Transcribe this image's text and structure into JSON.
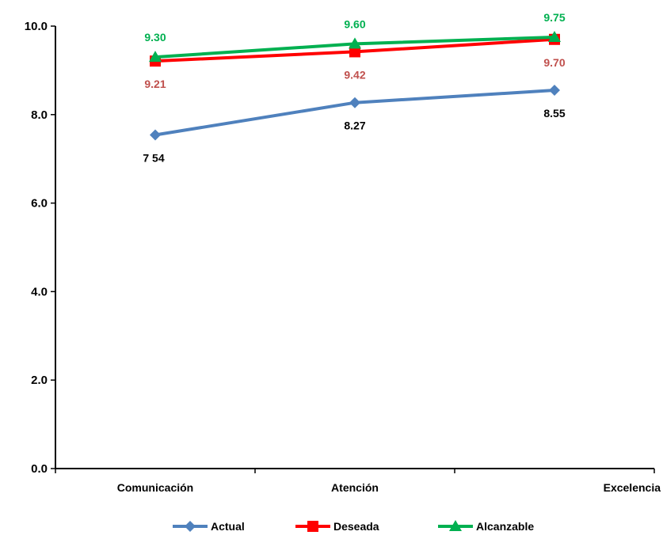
{
  "chart_data": {
    "type": "line",
    "categories": [
      "Comunicación",
      "Atención",
      "Excelencia"
    ],
    "ylim": [
      0,
      10
    ],
    "yticks": [
      "0.0",
      "2.0",
      "4.0",
      "6.0",
      "8.0",
      "10.0"
    ],
    "grid": false,
    "legend_position": "bottom",
    "series": [
      {
        "name": "Actual",
        "color": "#4F81BD",
        "marker": "diamond",
        "values": [
          7.54,
          8.27,
          8.55
        ],
        "labels": [
          "7 54",
          "8.27",
          "8.55"
        ],
        "label_color": "#000000",
        "label_position": "below"
      },
      {
        "name": "Deseada",
        "color": "#FF0000",
        "marker": "square",
        "values": [
          9.21,
          9.42,
          9.7
        ],
        "labels": [
          "9.21",
          "9.42",
          "9.70"
        ],
        "label_color": "#C0504D",
        "label_position": "below"
      },
      {
        "name": "Alcanzable",
        "color": "#00B050",
        "marker": "triangle",
        "values": [
          9.3,
          9.6,
          9.75
        ],
        "labels": [
          "9.30",
          "9.60",
          "9.75"
        ],
        "label_color": "#00B050",
        "label_position": "above"
      }
    ]
  }
}
